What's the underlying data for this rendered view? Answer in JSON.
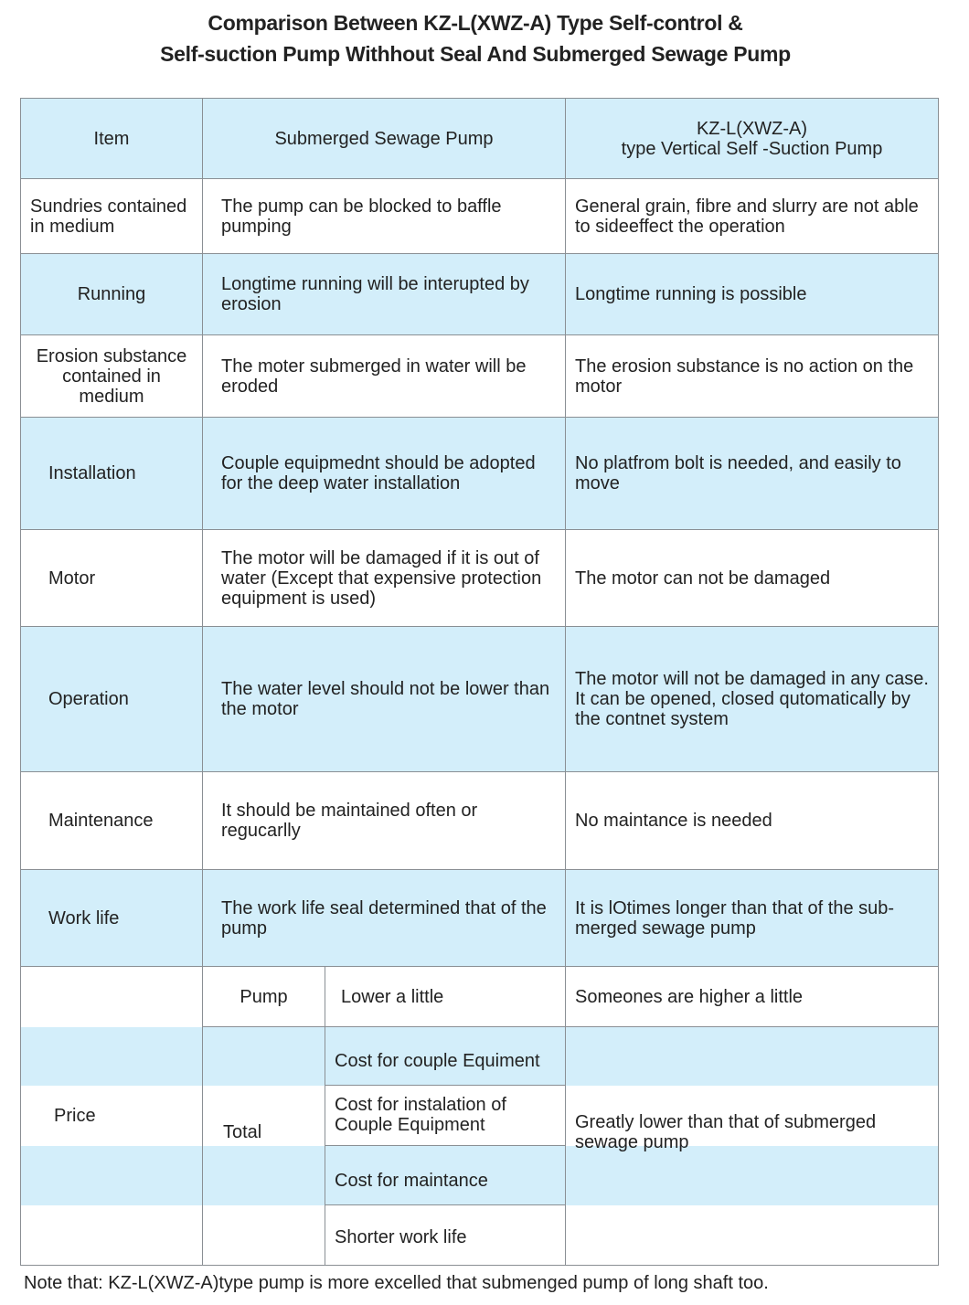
{
  "title": {
    "line1": "Comparison Between KZ-L(XWZ-A) Type Self-control &",
    "line2": "Self-suction Pump Withhout Seal And Submerged Sewage Pump"
  },
  "header": {
    "item": "Item",
    "col1": "Submerged Sewage Pump",
    "col2_line1": "KZ-L(XWZ-A)",
    "col2_line2": "type Vertical Self -Suction Pump"
  },
  "rows": [
    {
      "item": "Sundries contained in medium",
      "submerged": "The pump can be blocked to baffle pumping",
      "kz": "General grain, fibre and slurry are not able to sideeffect the operation"
    },
    {
      "item": "Running",
      "submerged": "Longtime running will be interupted by erosion",
      "kz": "Longtime running is possible"
    },
    {
      "item": "Erosion substance contained in medium",
      "submerged": "The moter submerged in water will be eroded",
      "kz": "The erosion substance is no action on the motor"
    },
    {
      "item": "Installation",
      "submerged": "Couple equipmednt should be adopted for the deep water installation",
      "kz": "No platfrom bolt is needed, and easily to move"
    },
    {
      "item": "Motor",
      "submerged": "The motor will be damaged if it is out of water (Except that expensive protection equipment is used)",
      "kz": "The motor can not be damaged"
    },
    {
      "item": "Operation",
      "submerged": "The water level should not be lower than the motor",
      "kz": "The motor will not be damaged in any case. It can be opened, closed qutomatically by the contnet system"
    },
    {
      "item": "Maintenance",
      "submerged": "It should be maintained often or regucarlly",
      "kz": "No maintance is needed"
    },
    {
      "item": "Work life",
      "submerged": "The work life seal determined that of the pump",
      "kz": "It is lOtimes longer than that of the sub-merged sewage pump"
    }
  ],
  "price": {
    "item": "Price",
    "pump_label": "Pump",
    "pump_submerged": "Lower a little",
    "pump_kz": "Someones are higher a little",
    "total_label": "Total",
    "total_items": [
      "Cost for couple Equiment",
      "Cost for instalation of Couple Equipment",
      "Cost for maintance",
      "Shorter work life"
    ],
    "total_kz": "Greatly lower than that of submerged sewage pump"
  },
  "note": "Note that: KZ-L(XWZ-A)type pump is more excelled that submenged pump of long shaft too.",
  "colors": {
    "band": "#d3eefa",
    "border": "#8a8f94"
  }
}
